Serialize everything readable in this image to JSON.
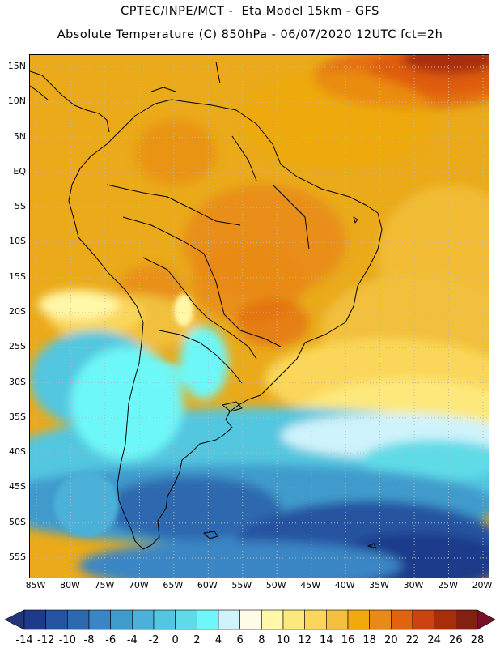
{
  "header": {
    "title_line1": "CPTEC/INPE/MCT -  Eta Model 15km - GFS",
    "title_line2": "Absolute Temperature (C) 850hPa - 06/07/2020 12UTC fct=2h"
  },
  "map": {
    "lat_labels": [
      "15N",
      "10N",
      "5N",
      "EQ",
      "5S",
      "10S",
      "15S",
      "20S",
      "25S",
      "30S",
      "35S",
      "40S",
      "45S",
      "50S",
      "55S"
    ],
    "lon_labels": [
      "85W",
      "80W",
      "75W",
      "70W",
      "65W",
      "60W",
      "55W",
      "50W",
      "45W",
      "40W",
      "35W",
      "30W",
      "25W",
      "20W"
    ],
    "lat_values": [
      15,
      10,
      5,
      0,
      -5,
      -10,
      -15,
      -20,
      -25,
      -30,
      -35,
      -40,
      -45,
      -50,
      -55
    ],
    "lon_values": [
      -85,
      -80,
      -75,
      -70,
      -65,
      -60,
      -55,
      -50,
      -45,
      -40,
      -35,
      -30,
      -25,
      -20
    ],
    "coastline_color": "#000000",
    "grid_color": "#b8b8b8"
  },
  "colorbar": {
    "labels": [
      "-14",
      "-12",
      "-10",
      "-8",
      "-6",
      "-4",
      "-2",
      "0",
      "2",
      "4",
      "6",
      "8",
      "10",
      "12",
      "14",
      "16",
      "18",
      "20",
      "22",
      "24",
      "26",
      "28"
    ],
    "colors": [
      "#1e3a8a",
      "#2653a0",
      "#2e69b0",
      "#3a86c4",
      "#3f9bcc",
      "#4bb1d8",
      "#53c6e0",
      "#5fdbe8",
      "#6ef7f8",
      "#cff3fb",
      "#fefbe6",
      "#fff8a8",
      "#fde87c",
      "#fad75a",
      "#f2c03c",
      "#f2a90b",
      "#e98a16",
      "#e2620e",
      "#cc4311",
      "#a82d0c",
      "#832010"
    ],
    "under_color": "#22357a",
    "over_color": "#7a0f28"
  }
}
